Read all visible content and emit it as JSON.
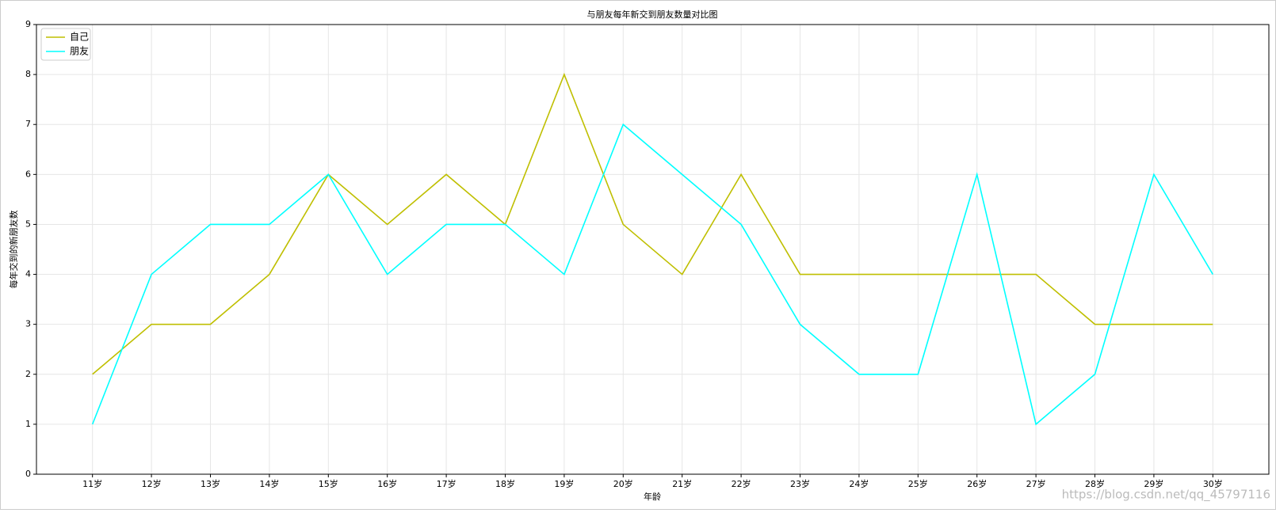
{
  "chart_data": {
    "type": "line",
    "title": "与朋友每年新交到朋友数量对比图",
    "x_label": "年龄",
    "y_label": "每年交到的新朋友数",
    "categories": [
      "11岁",
      "12岁",
      "13岁",
      "14岁",
      "15岁",
      "16岁",
      "17岁",
      "18岁",
      "19岁",
      "20岁",
      "21岁",
      "22岁",
      "23岁",
      "24岁",
      "25岁",
      "26岁",
      "27岁",
      "28岁",
      "29岁",
      "30岁"
    ],
    "series": [
      {
        "name": "自己",
        "color": "#bfbf00",
        "values": [
          2,
          3,
          3,
          4,
          6,
          5,
          6,
          5,
          8,
          5,
          4,
          6,
          4,
          4,
          4,
          4,
          4,
          3,
          3,
          3
        ]
      },
      {
        "name": "朋友",
        "color": "#00ffff",
        "values": [
          1,
          4,
          5,
          5,
          6,
          4,
          5,
          5,
          4,
          7,
          6,
          5,
          3,
          2,
          2,
          6,
          1,
          2,
          6,
          4
        ]
      }
    ],
    "ylim": [
      0,
      9
    ],
    "yticks": [
      0,
      1,
      2,
      3,
      4,
      5,
      6,
      7,
      8,
      9
    ],
    "grid": true,
    "legend_position": "upper-left",
    "watermark": "https://blog.csdn.net/qq_45797116"
  }
}
